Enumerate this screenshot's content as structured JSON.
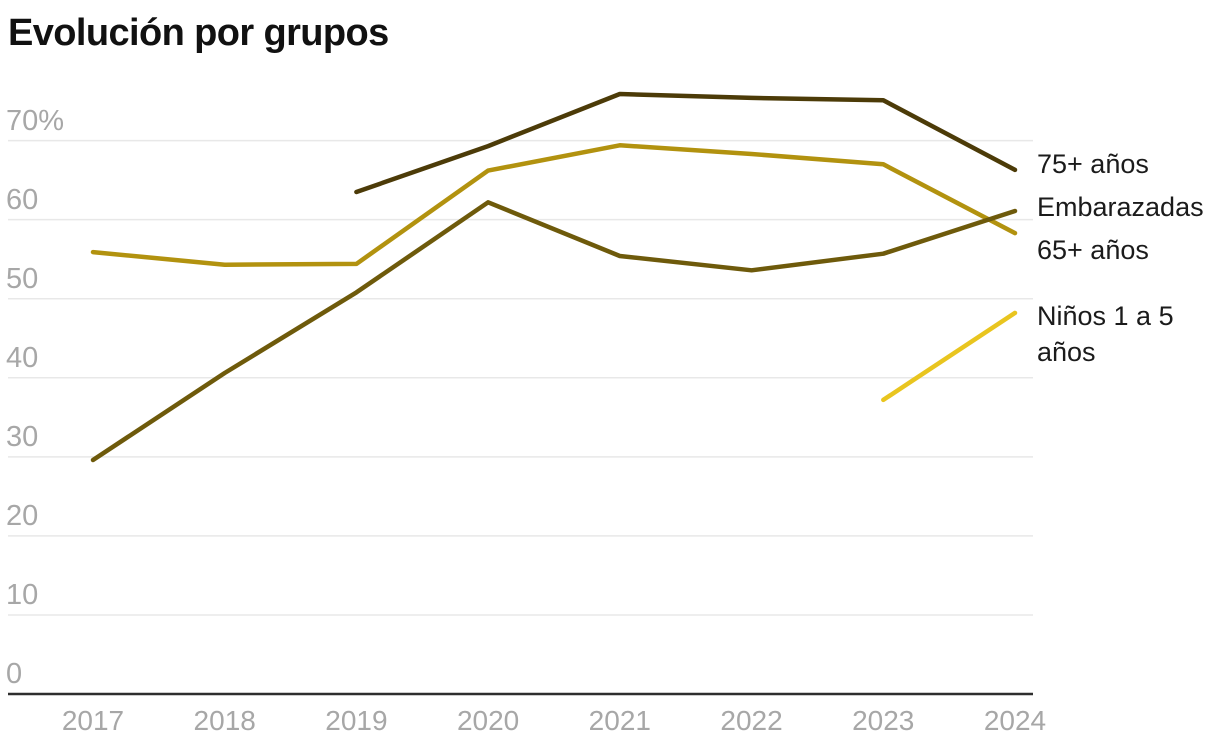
{
  "chart_data": {
    "type": "line",
    "title": "Evolución por grupos",
    "x": [
      "2017",
      "2018",
      "2019",
      "2020",
      "2021",
      "2022",
      "2023",
      "2024"
    ],
    "xlabel": "",
    "ylabel": "",
    "ylim": [
      0,
      78
    ],
    "grid": "horizontal-only",
    "legend_position": "right-direct-labels",
    "y_ticks": [
      {
        "v": 70,
        "label": "70%"
      },
      {
        "v": 60,
        "label": "60"
      },
      {
        "v": 50,
        "label": "50"
      },
      {
        "v": 40,
        "label": "40"
      },
      {
        "v": 30,
        "label": "30"
      },
      {
        "v": 20,
        "label": "20"
      },
      {
        "v": 10,
        "label": "10"
      },
      {
        "v": 0,
        "label": "0"
      }
    ],
    "series": [
      {
        "name": "75+ años",
        "color": "#4c3b08",
        "values": [
          null,
          null,
          63.5,
          69.3,
          75.9,
          75.4,
          75.1,
          66.3
        ]
      },
      {
        "name": "Embarazadas",
        "color": "#6e5a0b",
        "values": [
          29.6,
          40.6,
          50.8,
          62.2,
          55.4,
          53.6,
          55.7,
          61.1
        ]
      },
      {
        "name": "65+ años",
        "color": "#b2920f",
        "values": [
          55.9,
          54.3,
          54.4,
          66.2,
          69.4,
          68.3,
          67.0,
          58.3
        ]
      },
      {
        "name": "Niños 1 a 5 años",
        "color": "#e9c51f",
        "values": [
          null,
          null,
          null,
          null,
          null,
          null,
          37.2,
          48.2
        ]
      }
    ],
    "colors": {
      "gridline": "#e8e8e8",
      "axis_line": "#2e2e2e",
      "tick_label": "#a7a7a7",
      "title": "#111111",
      "legend_text": "#1b1b1b"
    }
  }
}
